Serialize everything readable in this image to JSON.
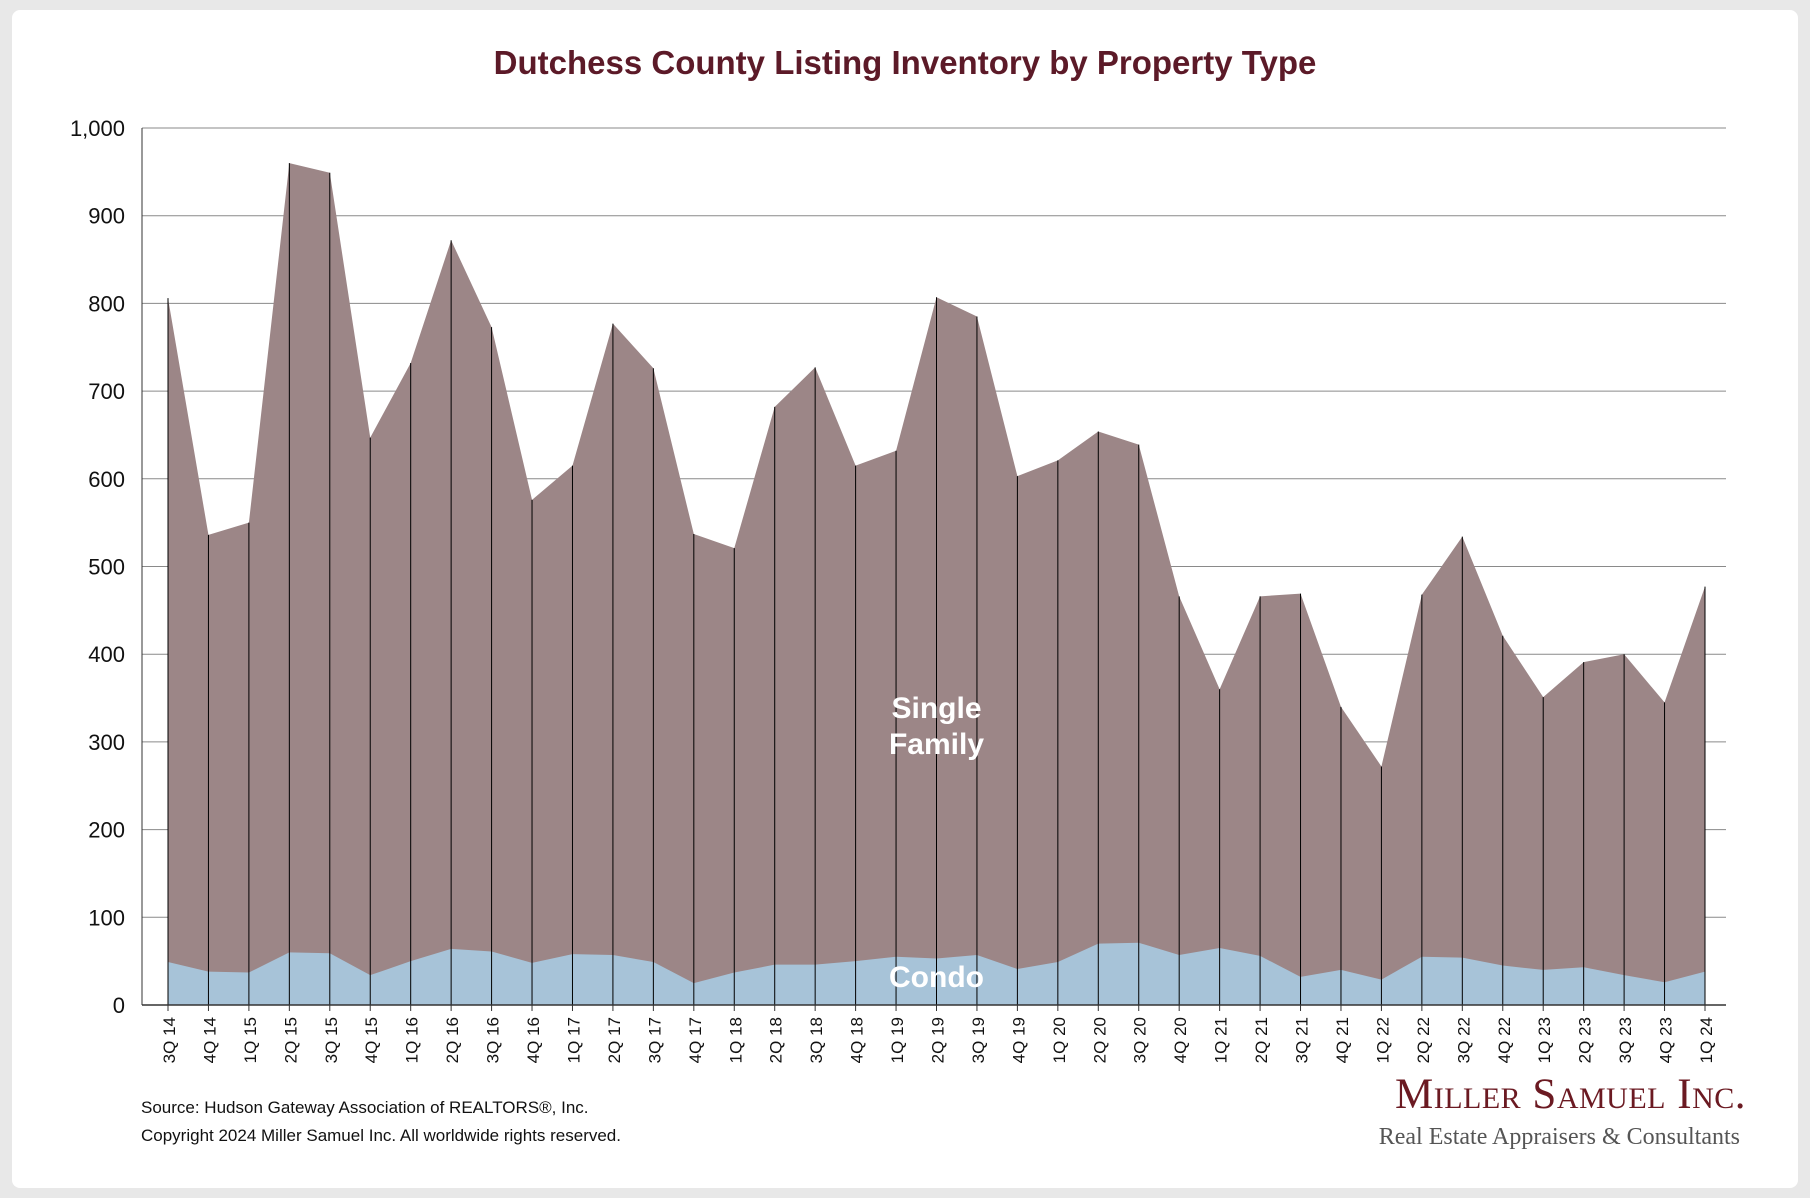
{
  "chart_data": {
    "type": "area",
    "stacked": true,
    "title": "Dutchess County Listing Inventory by Property Type",
    "ylim": [
      0,
      1000
    ],
    "yticks": [
      "0",
      "100",
      "200",
      "300",
      "400",
      "500",
      "600",
      "700",
      "800",
      "900",
      "1,000"
    ],
    "grid": true,
    "categories": [
      "3Q 14",
      "4Q 14",
      "1Q 15",
      "2Q 15",
      "3Q 15",
      "4Q 15",
      "1Q 16",
      "2Q 16",
      "3Q 16",
      "4Q 16",
      "1Q 17",
      "2Q 17",
      "3Q 17",
      "4Q 17",
      "1Q 18",
      "2Q 18",
      "3Q 18",
      "4Q 18",
      "1Q 19",
      "2Q 19",
      "3Q 19",
      "4Q 19",
      "1Q 20",
      "2Q 20",
      "3Q 20",
      "4Q 20",
      "1Q 21",
      "2Q 21",
      "3Q 21",
      "4Q 21",
      "1Q 22",
      "2Q 22",
      "3Q 22",
      "4Q 22",
      "1Q 23",
      "2Q 23",
      "3Q 23",
      "4Q 23",
      "1Q 24"
    ],
    "series": [
      {
        "name": "Condo",
        "color": "#a7c3d8",
        "values": [
          49,
          38,
          37,
          60,
          59,
          34,
          50,
          64,
          61,
          48,
          58,
          57,
          49,
          25,
          37,
          46,
          46,
          50,
          55,
          53,
          57,
          41,
          49,
          70,
          71,
          57,
          65,
          56,
          32,
          40,
          29,
          55,
          54,
          45,
          40,
          43,
          34,
          26,
          38
        ]
      },
      {
        "name": "Single Family",
        "color": "#9c8687",
        "values": [
          757,
          498,
          513,
          900,
          890,
          613,
          682,
          808,
          712,
          528,
          557,
          720,
          677,
          512,
          484,
          636,
          681,
          565,
          577,
          754,
          728,
          562,
          572,
          584,
          568,
          409,
          295,
          410,
          437,
          300,
          243,
          413,
          480,
          376,
          311,
          348,
          366,
          319,
          439
        ]
      }
    ],
    "annotations": [
      {
        "text": [
          "Single",
          "Family"
        ],
        "series": "Single Family"
      },
      {
        "text": [
          "Condo"
        ],
        "series": "Condo"
      }
    ]
  },
  "footer": {
    "source": "Source: Hudson Gateway Association of REALTORS®, Inc.",
    "copyright": "Copyright 2024 Miller Samuel Inc.  All worldwide rights reserved."
  },
  "brand": {
    "name": "Miller Samuel Inc.",
    "tagline": "Real Estate Appraisers & Consultants"
  }
}
